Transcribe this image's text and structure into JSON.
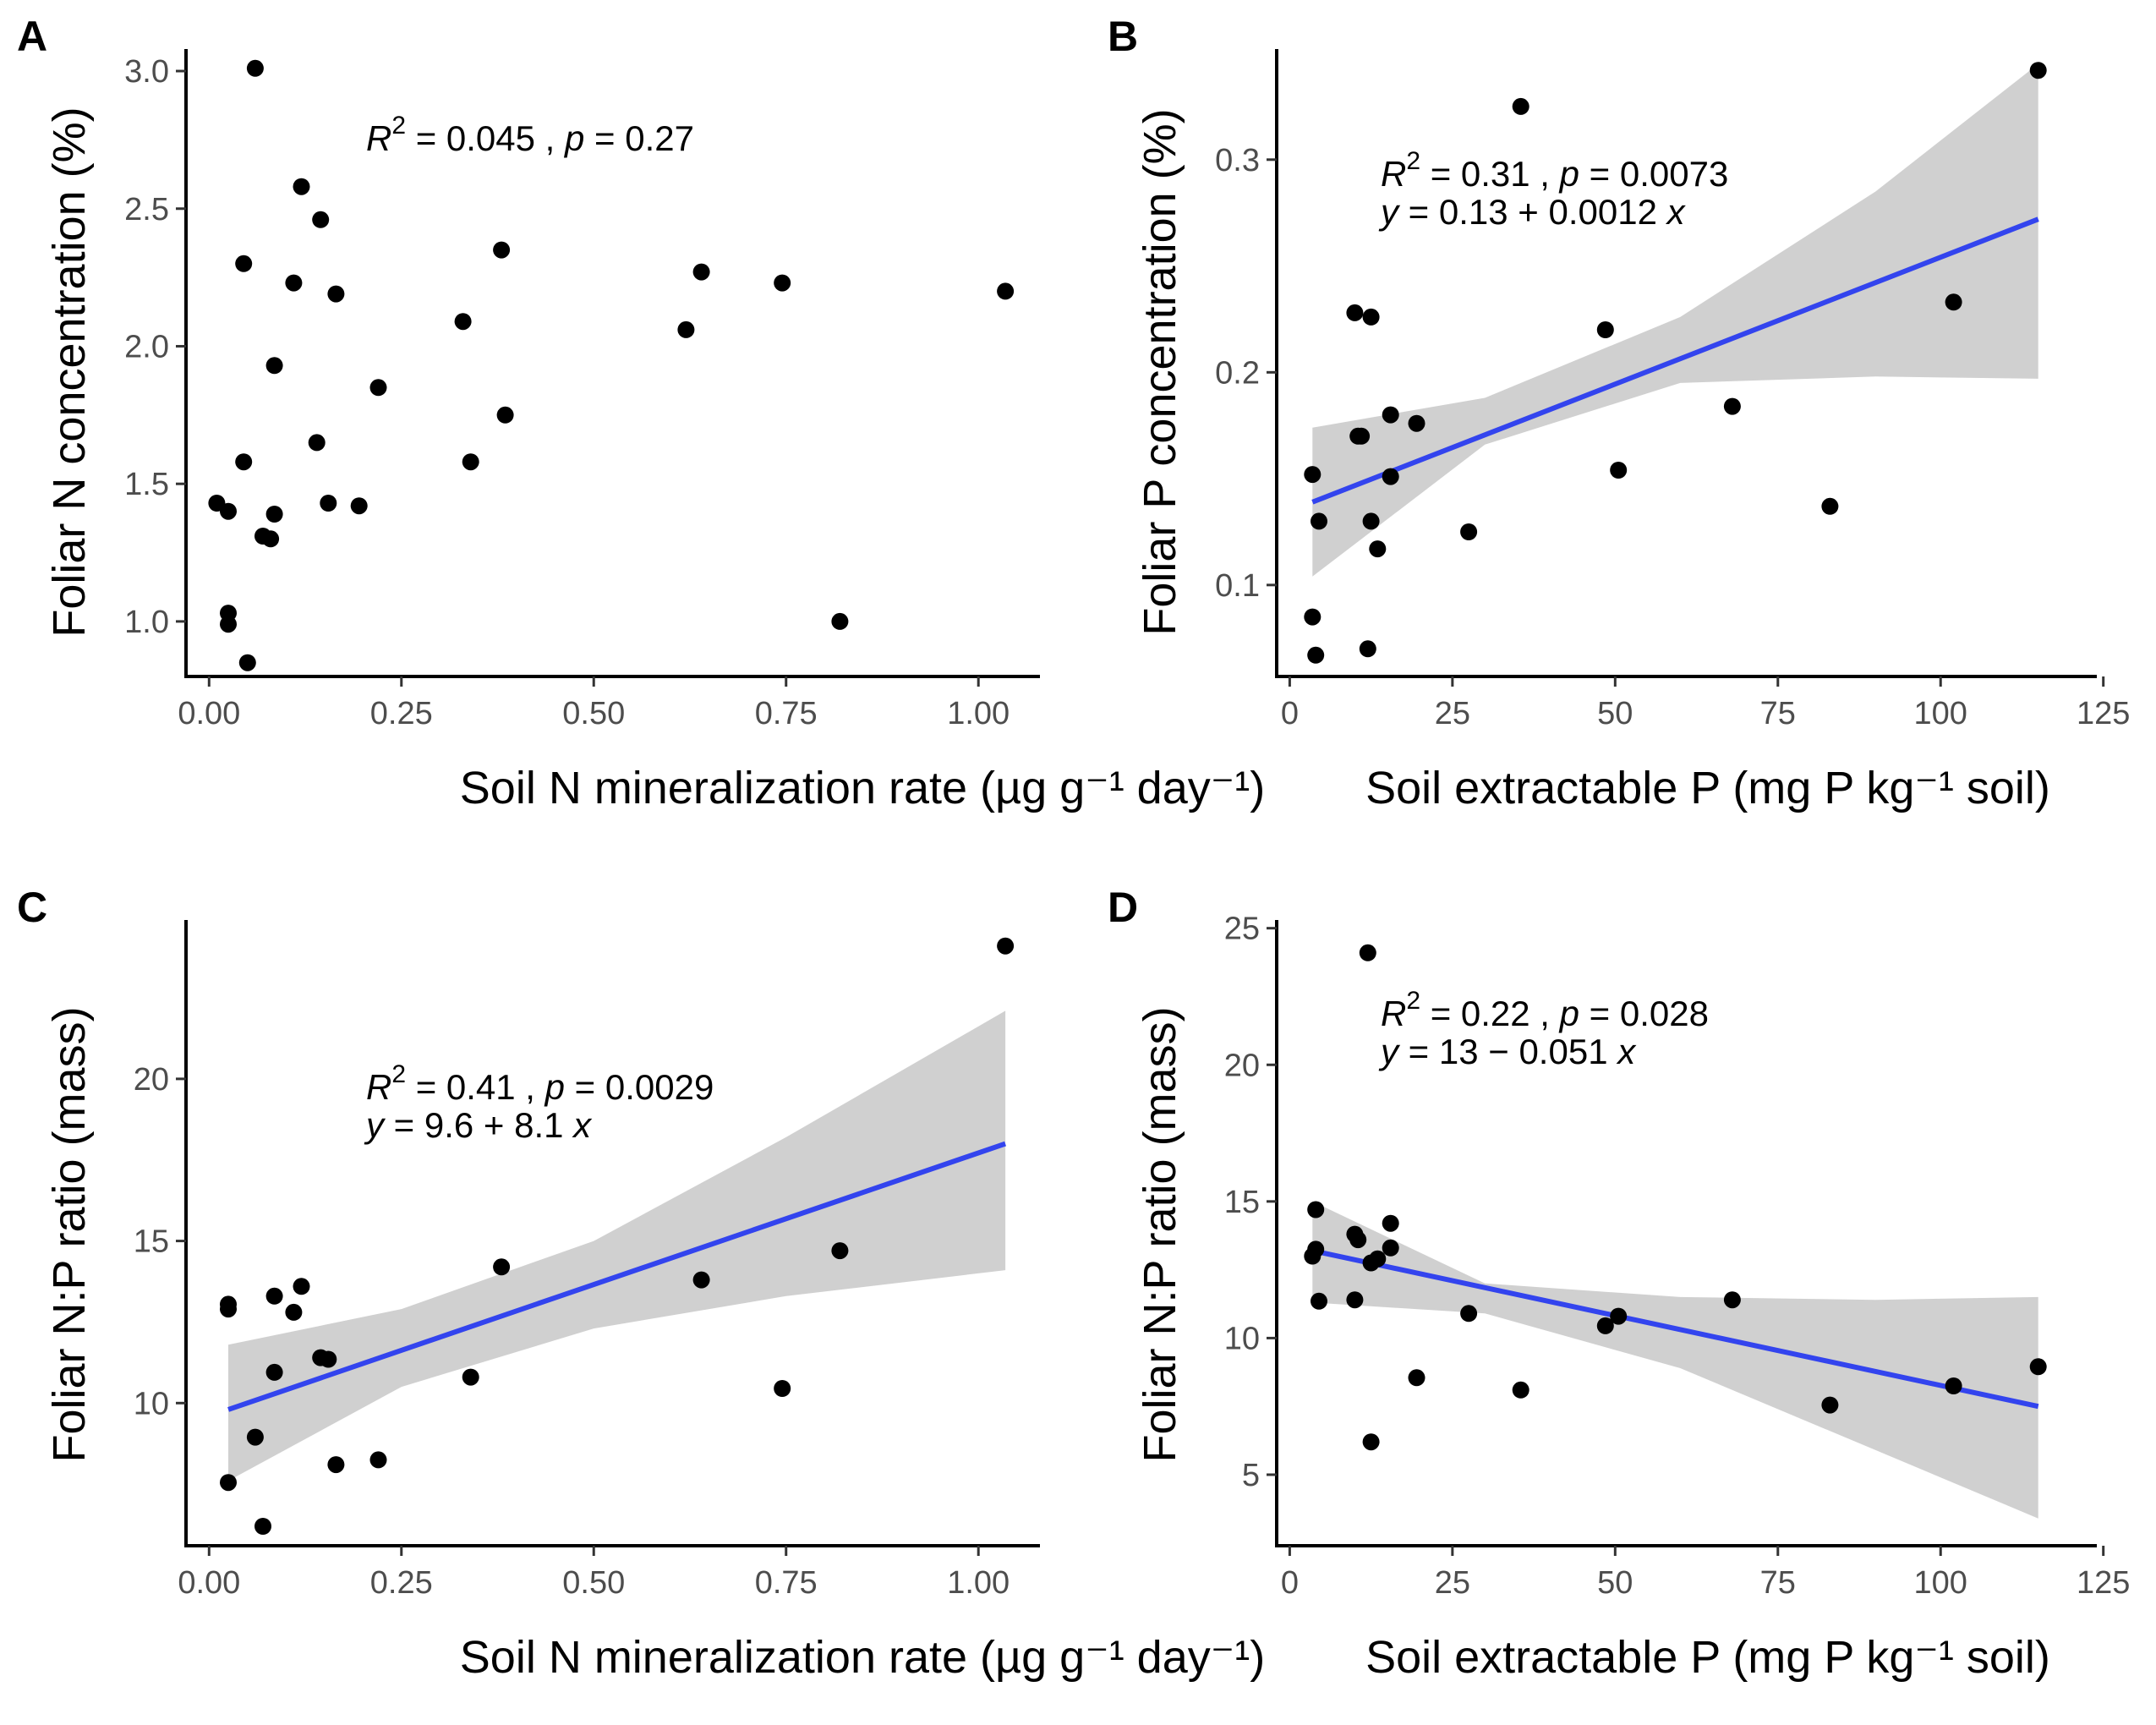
{
  "chart_data": [
    {
      "type": "scatter",
      "panel": "A",
      "xlabel": "Soil N mineralization rate (µg g⁻¹ day⁻¹)",
      "ylabel": "Foliar N concentration (%)",
      "xlim": [
        -0.03,
        1.08
      ],
      "ylim": [
        0.8,
        3.08
      ],
      "xticks": [
        0,
        0.25,
        0.5,
        0.75,
        1
      ],
      "xtick_labels": [
        "0.00",
        "0.25",
        "0.50",
        "0.75",
        "1.00"
      ],
      "yticks": [
        1,
        1.5,
        2,
        2.5,
        3
      ],
      "ytick_labels": [
        "1.0",
        "1.5",
        "2.0",
        "2.5",
        "3.0"
      ],
      "stats": {
        "r2_label": "R",
        "r2_sup": "2",
        "r2_value": " = 0.045 , ",
        "p_label": "p",
        "p_value": " = 0.27"
      },
      "fit": null,
      "points": [
        [
          0.06,
          3.01
        ],
        [
          0.12,
          2.58
        ],
        [
          0.145,
          2.46
        ],
        [
          0.045,
          2.3
        ],
        [
          0.11,
          2.23
        ],
        [
          0.165,
          2.19
        ],
        [
          0.38,
          2.35
        ],
        [
          0.64,
          2.27
        ],
        [
          0.745,
          2.23
        ],
        [
          1.035,
          2.2
        ],
        [
          0.33,
          2.09
        ],
        [
          0.62,
          2.06
        ],
        [
          0.085,
          1.93
        ],
        [
          0.22,
          1.85
        ],
        [
          0.385,
          1.75
        ],
        [
          0.14,
          1.65
        ],
        [
          0.045,
          1.58
        ],
        [
          0.34,
          1.58
        ],
        [
          0.01,
          1.43
        ],
        [
          0.155,
          1.43
        ],
        [
          0.195,
          1.42
        ],
        [
          0.025,
          1.4
        ],
        [
          0.085,
          1.39
        ],
        [
          0.07,
          1.31
        ],
        [
          0.08,
          1.3
        ],
        [
          0.025,
          1.03
        ],
        [
          0.025,
          0.99
        ],
        [
          0.82,
          1.0
        ],
        [
          0.05,
          0.85
        ]
      ]
    },
    {
      "type": "scatter",
      "panel": "B",
      "xlabel": "Soil extractable P (mg P kg⁻¹ soil)",
      "ylabel": "Foliar P concentration (%)",
      "xlim": [
        -2,
        124
      ],
      "ylim": [
        0.057,
        0.352
      ],
      "xticks": [
        0,
        25,
        50,
        75,
        100,
        125
      ],
      "xtick_labels": [
        "0",
        "25",
        "50",
        "75",
        "100",
        "125"
      ],
      "yticks": [
        0.1,
        0.2,
        0.3
      ],
      "ytick_labels": [
        "0.1",
        "0.2",
        "0.3"
      ],
      "stats": {
        "r2_label": "R",
        "r2_sup": "2",
        "r2_value": " = 0.31 , ",
        "p_label": "p",
        "p_value": " = 0.0073",
        "eq_y": "y",
        "eq_body": " = 0.13 + 0.0012 ",
        "eq_x": "x"
      },
      "fit": {
        "x": [
          3.5,
          115
        ],
        "y": [
          0.139,
          0.272
        ],
        "band_lower": [
          [
            3.5,
            0.104
          ],
          [
            30,
            0.166
          ],
          [
            60,
            0.195
          ],
          [
            90,
            0.198
          ],
          [
            115,
            0.197
          ]
        ],
        "band_upper": [
          [
            3.5,
            0.174
          ],
          [
            30,
            0.188
          ],
          [
            60,
            0.226
          ],
          [
            90,
            0.285
          ],
          [
            115,
            0.345
          ]
        ]
      },
      "points": [
        [
          115,
          0.342
        ],
        [
          35.5,
          0.325
        ],
        [
          10,
          0.228
        ],
        [
          12.5,
          0.226
        ],
        [
          48.5,
          0.22
        ],
        [
          102,
          0.233
        ],
        [
          15.5,
          0.18
        ],
        [
          10.5,
          0.17
        ],
        [
          11,
          0.17
        ],
        [
          19.5,
          0.176
        ],
        [
          68,
          0.184
        ],
        [
          3.5,
          0.152
        ],
        [
          15.5,
          0.151
        ],
        [
          50.5,
          0.154
        ],
        [
          4.5,
          0.13
        ],
        [
          12.5,
          0.13
        ],
        [
          27.5,
          0.125
        ],
        [
          83,
          0.137
        ],
        [
          13.5,
          0.117
        ],
        [
          3.5,
          0.085
        ],
        [
          4,
          0.067
        ],
        [
          12,
          0.07
        ]
      ]
    },
    {
      "type": "scatter",
      "panel": "C",
      "xlabel": "Soil N mineralization rate (µg g⁻¹ day⁻¹)",
      "ylabel": "Foliar N:P ratio (mass)",
      "xlim": [
        -0.03,
        1.08
      ],
      "ylim": [
        5.6,
        24.9
      ],
      "xticks": [
        0,
        0.25,
        0.5,
        0.75,
        1
      ],
      "xtick_labels": [
        "0.00",
        "0.25",
        "0.50",
        "0.75",
        "1.00"
      ],
      "yticks": [
        10,
        15,
        20
      ],
      "ytick_labels": [
        "10",
        "15",
        "20"
      ],
      "stats": {
        "r2_label": "R",
        "r2_sup": "2",
        "r2_value": " = 0.41 , ",
        "p_label": "p",
        "p_value": " = 0.0029",
        "eq_y": "y",
        "eq_body": " = 9.6 + 8.1 ",
        "eq_x": "x"
      },
      "fit": {
        "x": [
          0.025,
          1.035
        ],
        "y": [
          9.8,
          18.0
        ],
        "band_lower": [
          [
            0.025,
            7.6
          ],
          [
            0.25,
            10.5
          ],
          [
            0.5,
            12.3
          ],
          [
            0.75,
            13.3
          ],
          [
            1.035,
            14.1
          ]
        ],
        "band_upper": [
          [
            0.025,
            11.8
          ],
          [
            0.25,
            12.9
          ],
          [
            0.5,
            15.0
          ],
          [
            0.75,
            18.2
          ],
          [
            1.035,
            22.1
          ]
        ]
      },
      "points": [
        [
          1.035,
          24.1
        ],
        [
          0.38,
          14.2
        ],
        [
          0.82,
          14.7
        ],
        [
          0.64,
          13.8
        ],
        [
          0.12,
          13.6
        ],
        [
          0.085,
          13.3
        ],
        [
          0.025,
          13.05
        ],
        [
          0.025,
          12.9
        ],
        [
          0.11,
          12.8
        ],
        [
          0.145,
          11.4
        ],
        [
          0.155,
          11.35
        ],
        [
          0.085,
          10.95
        ],
        [
          0.34,
          10.8
        ],
        [
          0.745,
          10.45
        ],
        [
          0.06,
          8.95
        ],
        [
          0.22,
          8.25
        ],
        [
          0.165,
          8.1
        ],
        [
          0.025,
          7.55
        ],
        [
          0.07,
          6.2
        ]
      ]
    },
    {
      "type": "scatter",
      "panel": "D",
      "xlabel": "Soil extractable P (mg P kg⁻¹ soil)",
      "ylabel": "Foliar N:P ratio (mass)",
      "xlim": [
        -2,
        124
      ],
      "ylim": [
        2.4,
        25.3
      ],
      "xticks": [
        0,
        25,
        50,
        75,
        100,
        125
      ],
      "xtick_labels": [
        "0",
        "25",
        "50",
        "75",
        "100",
        "125"
      ],
      "yticks": [
        5,
        10,
        15,
        20,
        25
      ],
      "ytick_labels": [
        "5",
        "10",
        "15",
        "20",
        "25"
      ],
      "stats": {
        "r2_label": "R",
        "r2_sup": "2",
        "r2_value": " = 0.22 , ",
        "p_label": "p",
        "p_value": " = 0.028",
        "eq_y": "y",
        "eq_body": " = 13 − 0.051 ",
        "eq_x": "x"
      },
      "fit": {
        "x": [
          3.5,
          115
        ],
        "y": [
          13.2,
          7.5
        ],
        "band_lower": [
          [
            3.5,
            11.3
          ],
          [
            30,
            10.9
          ],
          [
            60,
            8.9
          ],
          [
            90,
            5.9
          ],
          [
            115,
            3.4
          ]
        ],
        "band_upper": [
          [
            3.5,
            15.0
          ],
          [
            30,
            12.0
          ],
          [
            60,
            11.5
          ],
          [
            90,
            11.4
          ],
          [
            115,
            11.5
          ]
        ]
      },
      "points": [
        [
          12,
          24.1
        ],
        [
          4,
          14.7
        ],
        [
          15.5,
          14.2
        ],
        [
          10,
          13.8
        ],
        [
          10.5,
          13.6
        ],
        [
          4,
          13.25
        ],
        [
          15.5,
          13.3
        ],
        [
          3.5,
          13.0
        ],
        [
          13.5,
          12.9
        ],
        [
          12.5,
          12.75
        ],
        [
          4.5,
          11.35
        ],
        [
          10,
          11.4
        ],
        [
          27.5,
          10.9
        ],
        [
          50.5,
          10.8
        ],
        [
          48.5,
          10.45
        ],
        [
          68,
          11.4
        ],
        [
          19.5,
          8.55
        ],
        [
          35.5,
          8.1
        ],
        [
          102,
          8.25
        ],
        [
          115,
          8.95
        ],
        [
          83,
          7.55
        ],
        [
          12.5,
          6.2
        ]
      ]
    }
  ]
}
